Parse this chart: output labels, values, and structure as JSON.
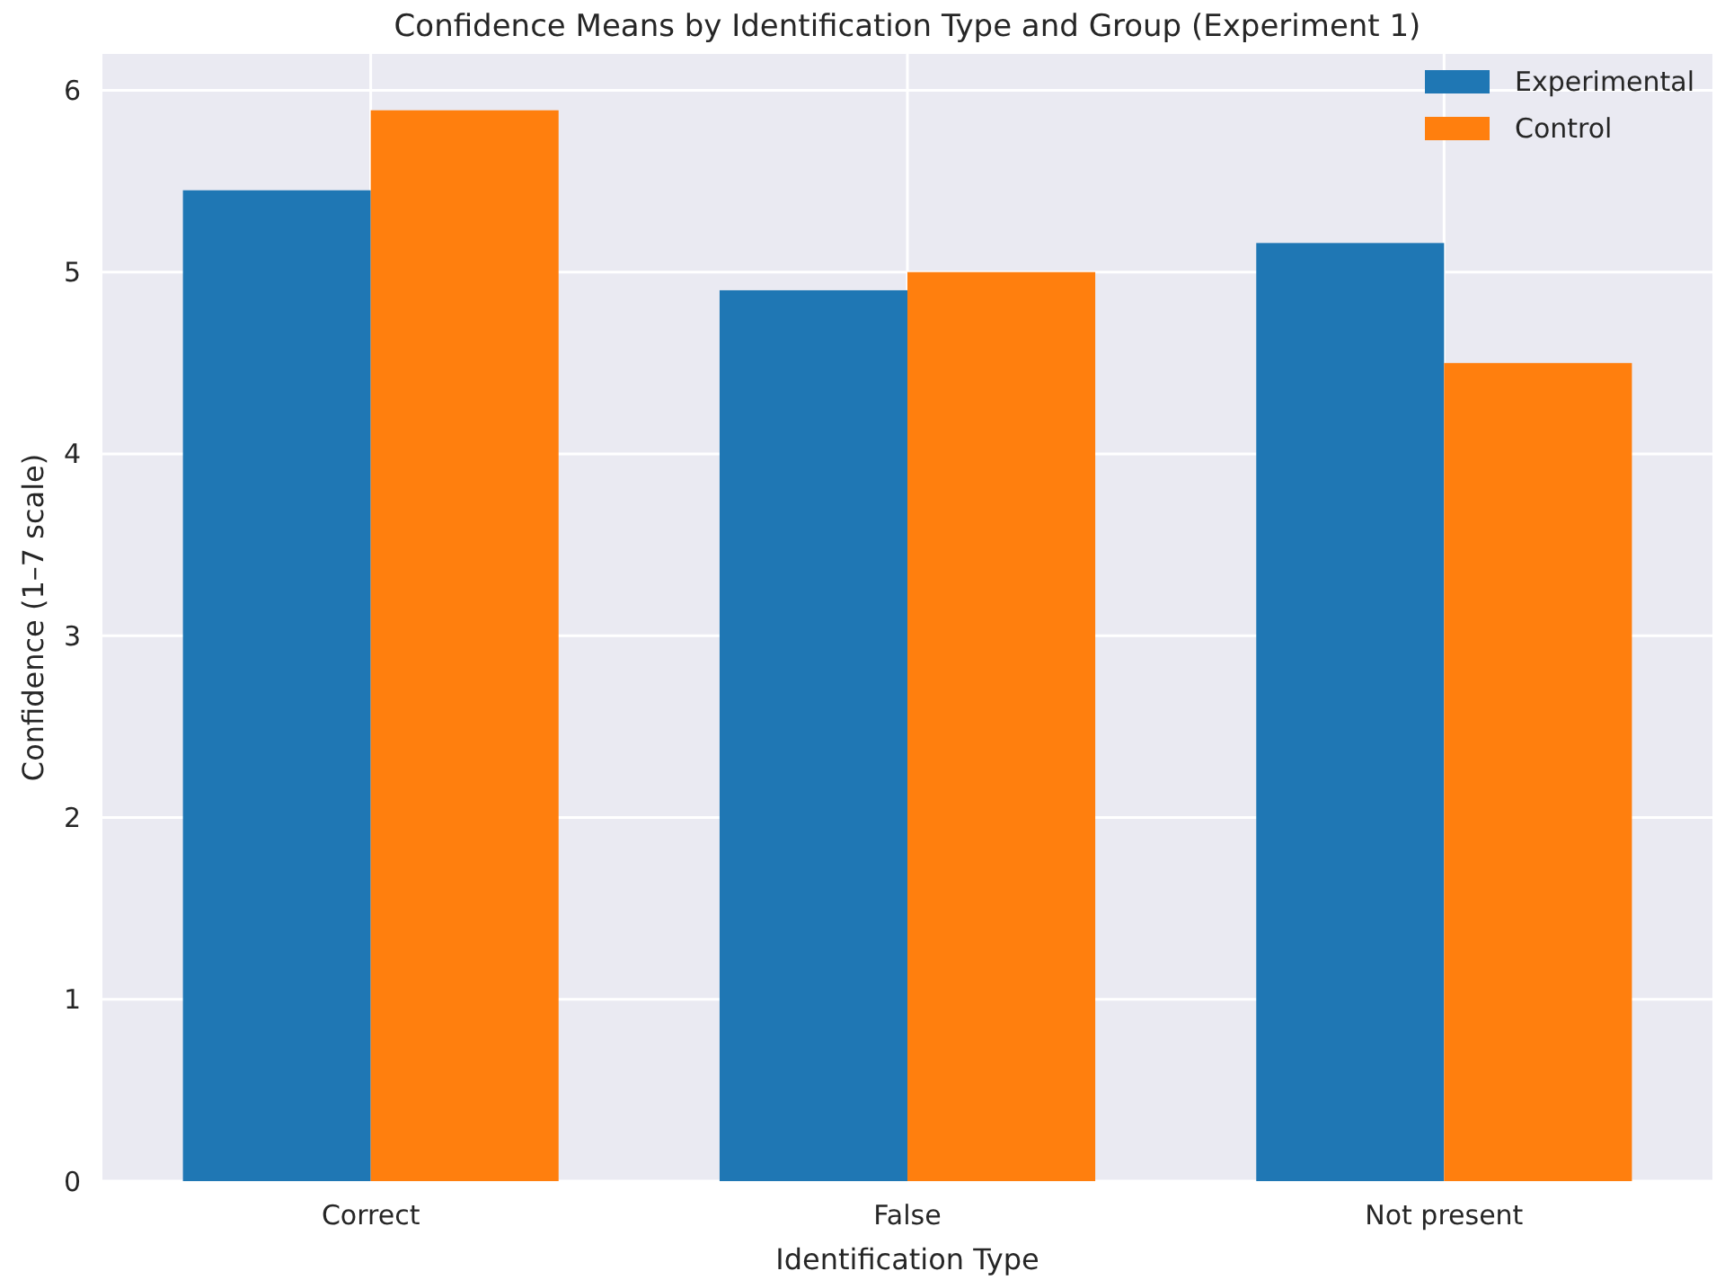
{
  "chart_data": {
    "type": "bar",
    "title": "Confidence Means by Identification Type and Group (Experiment 1)",
    "xlabel": "Identification Type",
    "ylabel": "Confidence (1–7 scale)",
    "categories": [
      "Correct",
      "False",
      "Not present"
    ],
    "series": [
      {
        "name": "Experimental",
        "color": "#1f77b4",
        "values": [
          5.45,
          4.9,
          5.16
        ]
      },
      {
        "name": "Control",
        "color": "#ff7f0e",
        "values": [
          5.89,
          5.0,
          4.5
        ]
      }
    ],
    "ylim": [
      0,
      6.2
    ],
    "yticks": [
      0,
      1,
      2,
      3,
      4,
      5,
      6
    ],
    "grid": true,
    "legend": "top right"
  }
}
